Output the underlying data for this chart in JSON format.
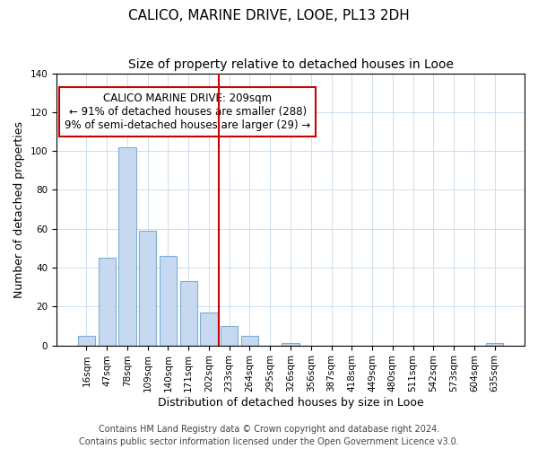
{
  "title": "CALICO, MARINE DRIVE, LOOE, PL13 2DH",
  "subtitle": "Size of property relative to detached houses in Looe",
  "xlabel": "Distribution of detached houses by size in Looe",
  "ylabel": "Number of detached properties",
  "bar_labels": [
    "16sqm",
    "47sqm",
    "78sqm",
    "109sqm",
    "140sqm",
    "171sqm",
    "202sqm",
    "233sqm",
    "264sqm",
    "295sqm",
    "326sqm",
    "356sqm",
    "387sqm",
    "418sqm",
    "449sqm",
    "480sqm",
    "511sqm",
    "542sqm",
    "573sqm",
    "604sqm",
    "635sqm"
  ],
  "bar_values": [
    5,
    45,
    102,
    59,
    46,
    33,
    17,
    10,
    5,
    0,
    1,
    0,
    0,
    0,
    0,
    0,
    0,
    0,
    0,
    0,
    1
  ],
  "bar_color": "#c6d9f0",
  "bar_edge_color": "#7bafd4",
  "vline_x": 6,
  "vline_color": "#cc0000",
  "ylim": [
    0,
    140
  ],
  "annotation_title": "CALICO MARINE DRIVE: 209sqm",
  "annotation_line1": "← 91% of detached houses are smaller (288)",
  "annotation_line2": "9% of semi-detached houses are larger (29) →",
  "annotation_box_color": "#ffffff",
  "annotation_box_edge": "#cc0000",
  "footer_line1": "Contains HM Land Registry data © Crown copyright and database right 2024.",
  "footer_line2": "Contains public sector information licensed under the Open Government Licence v3.0.",
  "title_fontsize": 11,
  "subtitle_fontsize": 10,
  "axis_label_fontsize": 9,
  "tick_fontsize": 7.5,
  "annotation_fontsize": 8.5,
  "footer_fontsize": 7
}
